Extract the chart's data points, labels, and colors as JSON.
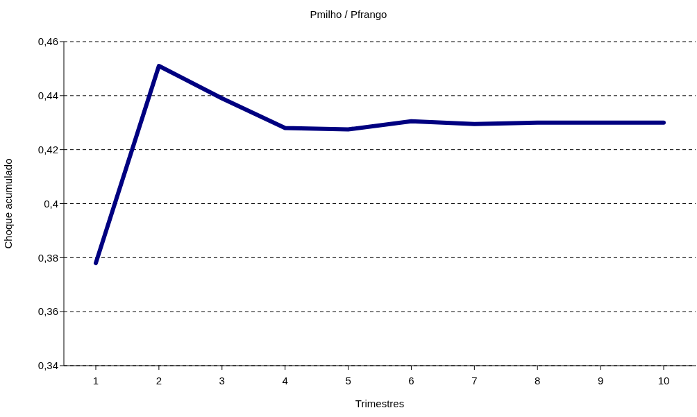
{
  "chart_data": {
    "type": "line",
    "title": "Pmilho / Pfrango",
    "xlabel": "Trimestres",
    "ylabel": "Choque acumulado",
    "categories": [
      "1",
      "2",
      "3",
      "4",
      "5",
      "6",
      "7",
      "8",
      "9",
      "10"
    ],
    "series": [
      {
        "color": "#000080",
        "values": [
          0.378,
          0.451,
          0.439,
          0.428,
          0.4275,
          0.4305,
          0.4295,
          0.43,
          0.43,
          0.43
        ]
      }
    ],
    "ylim": [
      0.34,
      0.46
    ],
    "yticks": [
      {
        "value": 0.34,
        "label": "0,34"
      },
      {
        "value": 0.36,
        "label": "0,36"
      },
      {
        "value": 0.38,
        "label": "0,38"
      },
      {
        "value": 0.4,
        "label": "0,4"
      },
      {
        "value": 0.42,
        "label": "0,42"
      },
      {
        "value": 0.44,
        "label": "0,44"
      },
      {
        "value": 0.46,
        "label": "0,46"
      }
    ],
    "grid": "y",
    "marker": "none",
    "line_style": "solid"
  }
}
